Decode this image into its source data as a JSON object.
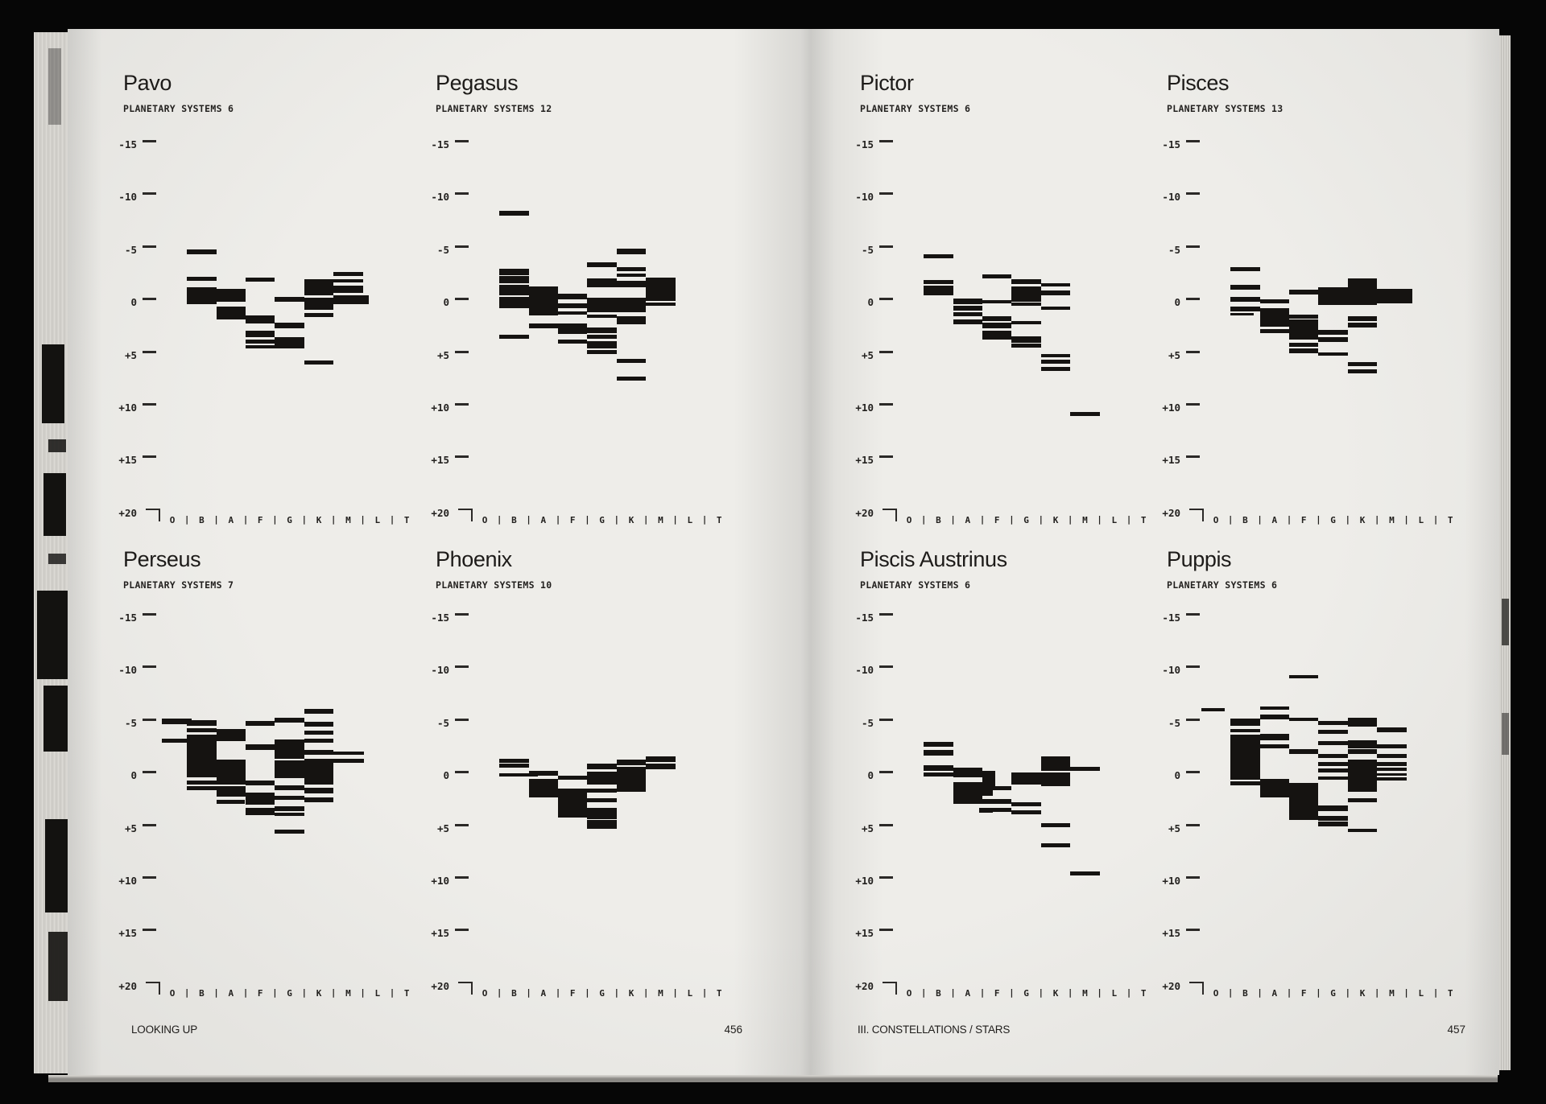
{
  "book": {
    "footer_left": {
      "label": "LOOKING UP",
      "page_number": "456"
    },
    "footer_right": {
      "label": "III. CONSTELLATIONS / STARS",
      "page_number": "457"
    }
  },
  "axis": {
    "y_ticks": [
      "-15",
      "-10",
      "-5",
      "0",
      "+5",
      "+10",
      "+15",
      "+20"
    ],
    "x_categories": [
      "O",
      "B",
      "A",
      "F",
      "G",
      "K",
      "M",
      "L",
      "T"
    ],
    "separator": "|"
  },
  "bars_format": "[column_center (O=0..T=8), span_in_columns, magnitude, thickness_px]",
  "charts": [
    {
      "title": "Pavo",
      "subtitle": "PLANETARY SYSTEMS 6",
      "row": 0,
      "col": 0,
      "bars": [
        [
          1,
          1,
          -4.8,
          6
        ],
        [
          1,
          1,
          -2.3,
          5
        ],
        [
          1,
          1,
          -1.1,
          10
        ],
        [
          1,
          1,
          -0.55,
          4
        ],
        [
          1,
          1,
          -0.1,
          7
        ],
        [
          2,
          1,
          -0.7,
          16
        ],
        [
          2,
          1,
          1.0,
          16
        ],
        [
          3,
          1,
          -2.2,
          5
        ],
        [
          3,
          1,
          1.6,
          10
        ],
        [
          3,
          1,
          3.0,
          8
        ],
        [
          3,
          1,
          3.7,
          5
        ],
        [
          3,
          1,
          4.2,
          4
        ],
        [
          4,
          1,
          -0.3,
          6
        ],
        [
          4,
          1,
          2.2,
          7
        ],
        [
          4,
          1,
          3.8,
          14
        ],
        [
          5,
          1,
          -1.5,
          20
        ],
        [
          5,
          1,
          0.1,
          15
        ],
        [
          5,
          1,
          1.2,
          5
        ],
        [
          5,
          1,
          5.7,
          5
        ],
        [
          6,
          1,
          -2.7,
          5
        ],
        [
          6,
          1,
          -2.1,
          4
        ],
        [
          6,
          1,
          -1.3,
          9
        ],
        [
          6,
          1.2,
          -0.3,
          11
        ]
      ]
    },
    {
      "title": "Pegasus",
      "subtitle": "PLANETARY SYSTEMS 12",
      "row": 0,
      "col": 1,
      "bars": [
        [
          1,
          1,
          -8.5,
          6
        ],
        [
          5,
          1,
          -4.9,
          7
        ],
        [
          4,
          1,
          -3.6,
          6
        ],
        [
          5,
          1,
          -3.2,
          5
        ],
        [
          1,
          1,
          -2.9,
          8
        ],
        [
          1,
          1,
          -2.2,
          9
        ],
        [
          5,
          1,
          -2.6,
          4
        ],
        [
          4,
          1,
          -1.9,
          11
        ],
        [
          5,
          1,
          -1.8,
          8
        ],
        [
          6,
          1,
          -1.4,
          26
        ],
        [
          1,
          1,
          -1.2,
          13
        ],
        [
          1,
          1,
          0.0,
          14
        ],
        [
          2,
          1,
          -0.2,
          36
        ],
        [
          3,
          1,
          -0.6,
          7
        ],
        [
          3,
          1,
          0.3,
          6
        ],
        [
          4,
          2,
          0.2,
          18
        ],
        [
          6,
          1,
          -0.35,
          4
        ],
        [
          6,
          1,
          0.15,
          4
        ],
        [
          3,
          1,
          1.0,
          4
        ],
        [
          4,
          1,
          1.3,
          4
        ],
        [
          5,
          1,
          1.7,
          10
        ],
        [
          2,
          1,
          2.2,
          6
        ],
        [
          3,
          1,
          2.5,
          13
        ],
        [
          4,
          1,
          2.6,
          7
        ],
        [
          1,
          1,
          3.2,
          5
        ],
        [
          3,
          1,
          3.7,
          5
        ],
        [
          4,
          1,
          3.2,
          5
        ],
        [
          4,
          1,
          4.0,
          9
        ],
        [
          4,
          1,
          4.7,
          5
        ],
        [
          5,
          1,
          5.5,
          5
        ],
        [
          5,
          1,
          7.2,
          5
        ]
      ]
    },
    {
      "title": "Pictor",
      "subtitle": "PLANETARY SYSTEMS 6",
      "row": 0,
      "col": 2,
      "bars": [
        [
          1,
          1,
          -4.4,
          5
        ],
        [
          1,
          1,
          -2.0,
          5
        ],
        [
          1,
          1,
          -1.2,
          12
        ],
        [
          3,
          1,
          -2.5,
          5
        ],
        [
          4,
          1,
          -2.0,
          6
        ],
        [
          5,
          1,
          -1.7,
          4
        ],
        [
          4,
          1,
          -0.8,
          19
        ],
        [
          5,
          1,
          -0.9,
          6
        ],
        [
          2,
          1,
          -0.1,
          7
        ],
        [
          3,
          1,
          -0.1,
          4
        ],
        [
          4,
          1,
          0.15,
          4
        ],
        [
          5,
          1,
          0.5,
          4
        ],
        [
          2,
          1,
          0.55,
          6
        ],
        [
          2,
          1,
          1.1,
          5
        ],
        [
          3,
          1,
          1.5,
          6
        ],
        [
          2,
          1,
          1.85,
          6
        ],
        [
          3,
          1,
          2.2,
          7
        ],
        [
          4,
          1,
          1.9,
          4
        ],
        [
          3,
          1,
          3.1,
          11
        ],
        [
          4,
          1,
          3.5,
          8
        ],
        [
          4,
          1,
          4.1,
          5
        ],
        [
          5,
          1,
          5.0,
          4
        ],
        [
          5,
          1,
          5.6,
          5
        ],
        [
          5,
          1,
          6.3,
          5
        ],
        [
          6,
          1,
          10.6,
          5
        ]
      ]
    },
    {
      "title": "Pisces",
      "subtitle": "PLANETARY SYSTEMS 13",
      "row": 0,
      "col": 3,
      "bars": [
        [
          1,
          1,
          -3.2,
          5
        ],
        [
          1,
          1,
          -1.5,
          6
        ],
        [
          5,
          1,
          -1.9,
          11
        ],
        [
          3,
          1,
          -1.0,
          6
        ],
        [
          4,
          2,
          -0.6,
          22
        ],
        [
          6,
          1.2,
          -0.65,
          18
        ],
        [
          1,
          1,
          -0.3,
          6
        ],
        [
          2,
          1,
          -0.1,
          5
        ],
        [
          1,
          1,
          0.6,
          6
        ],
        [
          1,
          0.8,
          1.1,
          3
        ],
        [
          2,
          1,
          1.4,
          23
        ],
        [
          3,
          1,
          1.3,
          5
        ],
        [
          3,
          1,
          1.95,
          9
        ],
        [
          5,
          1,
          1.5,
          6
        ],
        [
          5,
          1,
          2.1,
          6
        ],
        [
          2,
          1,
          2.7,
          5
        ],
        [
          3,
          1,
          2.9,
          16
        ],
        [
          4,
          1,
          2.85,
          6
        ],
        [
          4,
          1,
          3.5,
          6
        ],
        [
          3,
          1,
          4.0,
          5
        ],
        [
          3,
          1,
          4.6,
          6
        ],
        [
          4,
          1,
          4.85,
          4
        ],
        [
          5,
          1,
          5.8,
          5
        ],
        [
          5,
          1,
          6.5,
          5
        ]
      ]
    },
    {
      "title": "Perseus",
      "subtitle": "PLANETARY SYSTEMS 7",
      "row": 1,
      "col": 0,
      "bars": [
        [
          0.15,
          1,
          -5.15,
          7
        ],
        [
          1,
          1,
          -5.0,
          7
        ],
        [
          1,
          1,
          -4.35,
          5
        ],
        [
          2,
          1,
          -4.15,
          7
        ],
        [
          3,
          1,
          -4.95,
          6
        ],
        [
          4,
          1,
          -5.3,
          6
        ],
        [
          5,
          1,
          -6.1,
          6
        ],
        [
          5,
          1,
          -4.9,
          6
        ],
        [
          5,
          1,
          -4.1,
          5
        ],
        [
          0.15,
          1,
          -3.35,
          5
        ],
        [
          1,
          1,
          -1.9,
          53
        ],
        [
          2,
          1,
          -3.65,
          9
        ],
        [
          3,
          1,
          -2.75,
          7
        ],
        [
          4,
          1,
          -2.55,
          24
        ],
        [
          5,
          1,
          -3.35,
          5
        ],
        [
          5,
          1,
          -2.2,
          6
        ],
        [
          6,
          1.05,
          -2.15,
          4
        ],
        [
          5,
          2.05,
          -1.45,
          5
        ],
        [
          2,
          1,
          -1.3,
          7
        ],
        [
          4,
          1,
          -0.6,
          22
        ],
        [
          5,
          1,
          -0.35,
          30
        ],
        [
          2,
          1,
          -0.1,
          24
        ],
        [
          1,
          1,
          0.6,
          5
        ],
        [
          1,
          1,
          1.15,
          5
        ],
        [
          3,
          1,
          0.7,
          6
        ],
        [
          2,
          1,
          1.45,
          13
        ],
        [
          4,
          1,
          1.15,
          6
        ],
        [
          5,
          1,
          1.4,
          7
        ],
        [
          3,
          1,
          2.15,
          15
        ],
        [
          2,
          0.97,
          2.5,
          5
        ],
        [
          4,
          1,
          2.1,
          5
        ],
        [
          5,
          1,
          2.3,
          6
        ],
        [
          3,
          1,
          3.35,
          9
        ],
        [
          4,
          1,
          3.1,
          6
        ],
        [
          4,
          1,
          3.65,
          4
        ],
        [
          4,
          1,
          5.3,
          5
        ]
      ]
    },
    {
      "title": "Phoenix",
      "subtitle": "PLANETARY SYSTEMS 10",
      "row": 1,
      "col": 1,
      "bars": [
        [
          1,
          1,
          -1.4,
          5
        ],
        [
          1,
          1,
          -0.95,
          5
        ],
        [
          1,
          1.3,
          -0.1,
          4
        ],
        [
          2,
          1,
          -0.25,
          6
        ],
        [
          2,
          1,
          0.4,
          3
        ],
        [
          2,
          1,
          1.3,
          20
        ],
        [
          3,
          1,
          0.2,
          5
        ],
        [
          3,
          1,
          1.5,
          8
        ],
        [
          3,
          1,
          2.9,
          28
        ],
        [
          4,
          1,
          -0.9,
          7
        ],
        [
          4,
          1,
          0.2,
          16
        ],
        [
          4,
          1,
          1.4,
          5
        ],
        [
          4,
          1,
          2.3,
          5
        ],
        [
          4,
          1,
          3.6,
          14
        ],
        [
          4,
          1,
          4.6,
          11
        ],
        [
          5,
          1,
          -1.3,
          7
        ],
        [
          5,
          1,
          0.1,
          25
        ],
        [
          5,
          1,
          1.3,
          6
        ],
        [
          6,
          1,
          -1.6,
          7
        ],
        [
          6,
          1,
          -0.9,
          7
        ]
      ]
    },
    {
      "title": "Piscis Austrinus",
      "subtitle": "PLANETARY SYSTEMS 6",
      "row": 1,
      "col": 2,
      "bars": [
        [
          1,
          1,
          -3.0,
          6
        ],
        [
          1,
          1,
          -2.2,
          7
        ],
        [
          1,
          1,
          -0.75,
          7
        ],
        [
          1,
          1.6,
          -0.1,
          5
        ],
        [
          2,
          1,
          -0.3,
          12
        ],
        [
          3,
          0.45,
          0.4,
          22
        ],
        [
          4,
          1,
          0.25,
          15
        ],
        [
          5,
          1,
          0.35,
          17
        ],
        [
          5,
          1,
          -1.2,
          17
        ],
        [
          5,
          1,
          -0.65,
          5
        ],
        [
          6,
          1,
          -0.65,
          5
        ],
        [
          2,
          1,
          1.4,
          21
        ],
        [
          3,
          1,
          1.2,
          5
        ],
        [
          2.9,
          0.45,
          1.6,
          7
        ],
        [
          2,
          2,
          2.45,
          6
        ],
        [
          2.9,
          0.45,
          2.4,
          6
        ],
        [
          4,
          1,
          2.7,
          5
        ],
        [
          2.9,
          0.45,
          3.3,
          6
        ],
        [
          4,
          1,
          3.5,
          5
        ],
        [
          3,
          1,
          3.2,
          5
        ],
        [
          5,
          1,
          4.7,
          5
        ],
        [
          5,
          1,
          6.6,
          5
        ],
        [
          6,
          1,
          9.3,
          5
        ]
      ]
    },
    {
      "title": "Puppis",
      "subtitle": "PLANETARY SYSTEMS 6",
      "row": 1,
      "col": 3,
      "bars": [
        [
          3,
          1,
          -9.4,
          4
        ],
        [
          0,
          0.8,
          -6.3,
          4
        ],
        [
          2,
          1,
          -6.4,
          4
        ],
        [
          2,
          1,
          -5.6,
          6
        ],
        [
          3,
          1,
          -5.4,
          4
        ],
        [
          1,
          1,
          -5.1,
          9
        ],
        [
          4,
          1,
          -5.0,
          5
        ],
        [
          5,
          1,
          -5.1,
          11
        ],
        [
          6,
          1,
          -4.4,
          6
        ],
        [
          4,
          1,
          -4.2,
          5
        ],
        [
          1,
          1,
          -4.3,
          4
        ],
        [
          1,
          1,
          -1.8,
          56
        ],
        [
          2,
          1,
          -3.7,
          8
        ],
        [
          2,
          1,
          -2.8,
          5
        ],
        [
          4,
          1,
          -3.1,
          5
        ],
        [
          5,
          1,
          -3.0,
          10
        ],
        [
          6,
          1,
          -2.8,
          5
        ],
        [
          3,
          1,
          -2.3,
          6
        ],
        [
          4,
          1,
          -1.9,
          5
        ],
        [
          5,
          1,
          -2.3,
          6
        ],
        [
          6,
          1,
          -1.9,
          5
        ],
        [
          5,
          1,
          0.0,
          40
        ],
        [
          6,
          1,
          -1.1,
          5
        ],
        [
          6,
          1,
          -0.6,
          4
        ],
        [
          6,
          1,
          -0.1,
          3
        ],
        [
          6,
          1,
          0.3,
          4
        ],
        [
          4,
          1,
          -1.15,
          5
        ],
        [
          4,
          1,
          -0.5,
          5
        ],
        [
          4,
          1,
          0.2,
          4
        ],
        [
          1,
          1,
          0.7,
          5
        ],
        [
          2,
          1,
          1.0,
          18
        ],
        [
          3,
          1,
          0.8,
          4
        ],
        [
          2,
          1,
          1.85,
          6
        ],
        [
          3,
          1,
          1.4,
          11
        ],
        [
          3,
          1,
          3.0,
          32
        ],
        [
          4,
          1,
          3.1,
          7
        ],
        [
          4,
          1,
          4.0,
          6
        ],
        [
          4,
          1,
          4.6,
          6
        ],
        [
          5,
          1,
          2.3,
          5
        ],
        [
          5,
          1,
          5.2,
          4
        ]
      ]
    }
  ],
  "colors": {
    "paper": "#edece8",
    "ink": "#151311",
    "background": "#060606"
  }
}
